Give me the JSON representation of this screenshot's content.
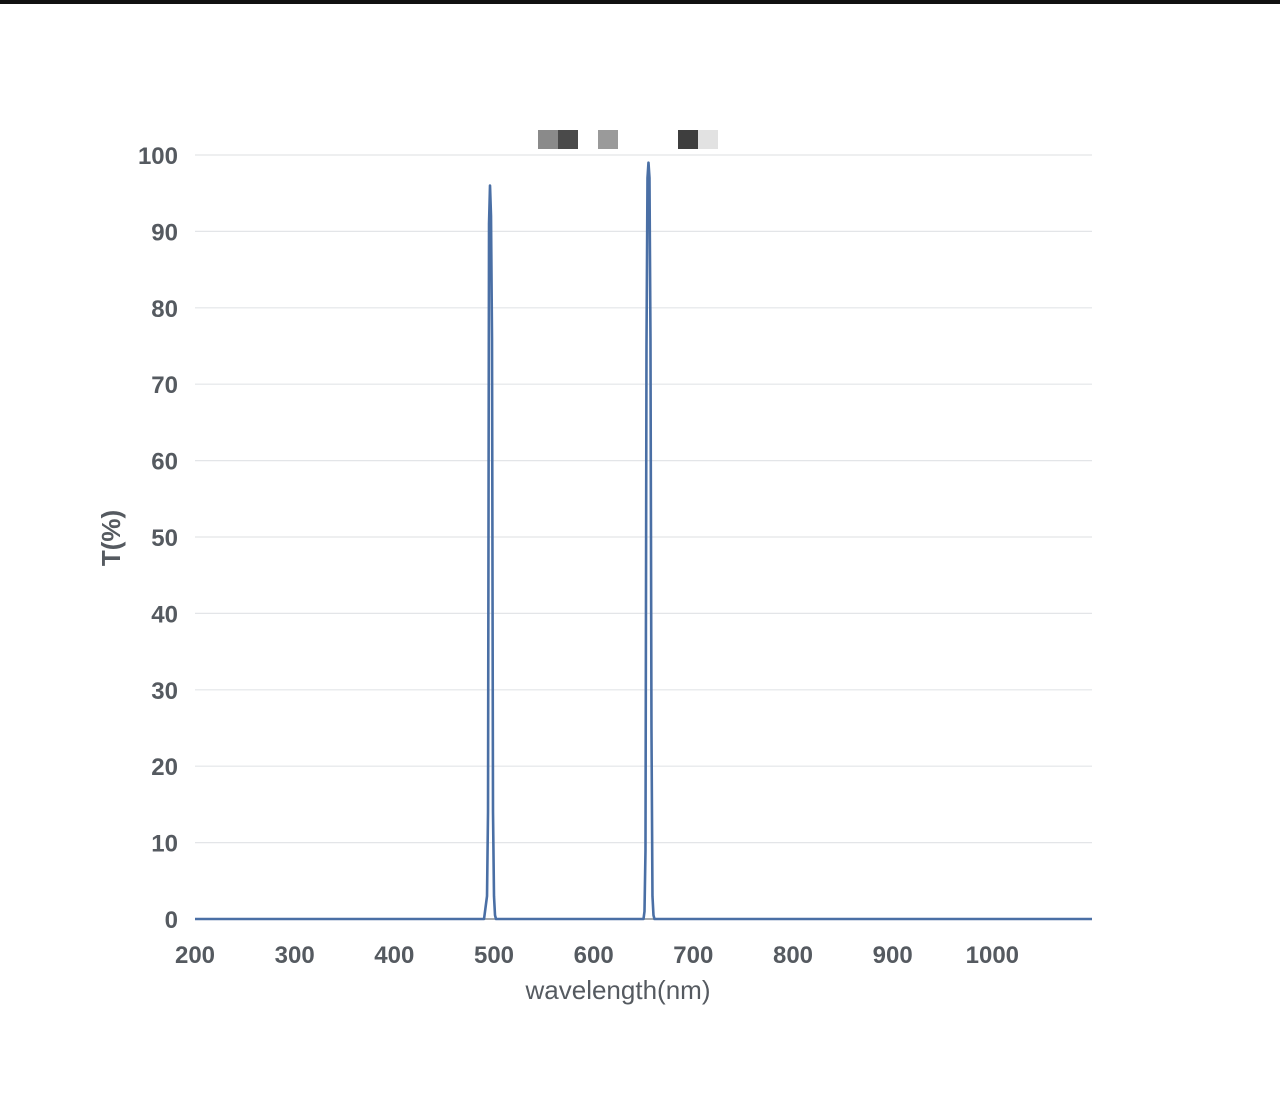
{
  "chart_data": {
    "type": "line",
    "xlabel": "wavelength(nm)",
    "ylabel": "T(%)",
    "xlim": [
      200,
      1100
    ],
    "ylim": [
      0,
      100
    ],
    "x_ticks": [
      200,
      300,
      400,
      500,
      600,
      700,
      800,
      900,
      1000
    ],
    "y_ticks": [
      0,
      10,
      20,
      30,
      40,
      50,
      60,
      70,
      80,
      90,
      100
    ],
    "grid": "horizontal",
    "series": [
      {
        "color": "#4a6fa5",
        "x": [
          200,
          490,
          493,
          494,
          495,
          496,
          497,
          498,
          499,
          500,
          501,
          502,
          503,
          504,
          505,
          506,
          650,
          651,
          652,
          653,
          654,
          655,
          656,
          657,
          658,
          659,
          660,
          661,
          662,
          1100
        ],
        "y": [
          0,
          0,
          3,
          14,
          91,
          96,
          92,
          76,
          14,
          3,
          0.5,
          0,
          0,
          0,
          0,
          0,
          0,
          1,
          9,
          75,
          97,
          99,
          97,
          76,
          25,
          3,
          0.5,
          0,
          0,
          0
        ]
      }
    ]
  },
  "legend": {
    "swatches": [
      {
        "color": "#8a8a8a"
      },
      {
        "color": "#4a4a4a"
      },
      {
        "color": "#9a9a9a"
      },
      {
        "color": "#3e3e3e"
      },
      {
        "color": "#e2e2e2"
      }
    ]
  }
}
